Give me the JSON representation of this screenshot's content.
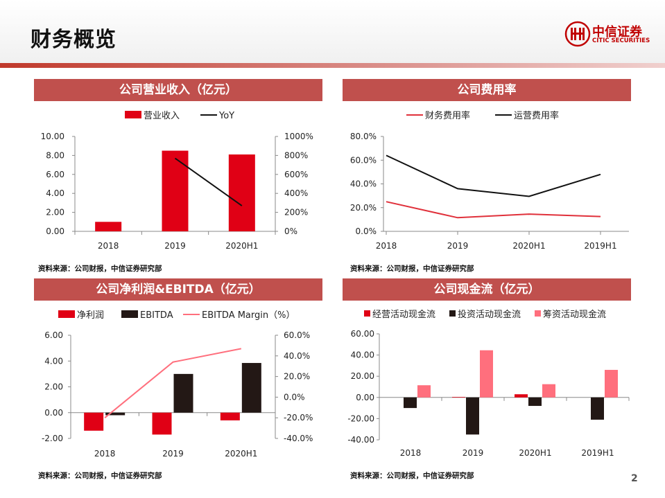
{
  "page": {
    "title": "财务概览",
    "page_number": "2"
  },
  "logo": {
    "name_cn": "中信证券",
    "name_en": "CITIC SECURITIES"
  },
  "colors": {
    "red": "#e00015",
    "black": "#231815",
    "pink": "#ff6f7d",
    "header_bar": "#c0504d",
    "line_red": "#e0303a"
  },
  "panels": [
    {
      "title": "公司营业收入（亿元）",
      "source": "资料来源：公司财报，中信证券研究部"
    },
    {
      "title": "公司费用率",
      "source": "资料来源：公司财报，中信证券研究部"
    },
    {
      "title": "公司净利润&EBITDA（亿元）",
      "source": "资料来源：公司财报，中信证券研究部"
    },
    {
      "title": "公司现金流（亿元）",
      "source": "资料来源：公司财报，中信证券研究部"
    }
  ],
  "chart_data": [
    {
      "type": "bar",
      "categories": [
        "2018",
        "2019",
        "2020H1"
      ],
      "series": [
        {
          "name": "营业收入",
          "kind": "bar",
          "axis": "left",
          "values": [
            1.0,
            8.5,
            8.1
          ]
        },
        {
          "name": "YoY",
          "kind": "line",
          "axis": "right",
          "values": [
            null,
            770,
            270
          ]
        }
      ],
      "ylim": [
        0,
        10
      ],
      "yticks": [
        "0.00",
        "2.00",
        "4.00",
        "6.00",
        "8.00",
        "10.00"
      ],
      "y2lim": [
        0,
        1000
      ],
      "y2ticks": [
        "0%",
        "200%",
        "400%",
        "600%",
        "800%",
        "1000%"
      ],
      "legend": "top"
    },
    {
      "type": "line",
      "categories": [
        "2018",
        "2019",
        "2020H1",
        "2019H1"
      ],
      "series": [
        {
          "name": "财务费用率",
          "values": [
            25.0,
            11.5,
            14.5,
            12.5
          ]
        },
        {
          "name": "运营费用率",
          "values": [
            64.0,
            36.0,
            29.5,
            48.0
          ]
        }
      ],
      "ylim": [
        0,
        80
      ],
      "yticks": [
        "0.0%",
        "20.0%",
        "40.0%",
        "60.0%",
        "80.0%"
      ],
      "legend": "top"
    },
    {
      "type": "bar",
      "categories": [
        "2018",
        "2019",
        "2020H1"
      ],
      "series": [
        {
          "name": "净利润",
          "kind": "bar",
          "axis": "left",
          "values": [
            -1.4,
            -1.7,
            -0.6
          ]
        },
        {
          "name": "EBITDA",
          "kind": "bar",
          "axis": "left",
          "values": [
            -0.2,
            3.0,
            3.85
          ]
        },
        {
          "name": "EBITDA Margin（%）",
          "kind": "line",
          "axis": "right",
          "values": [
            -20,
            34,
            47
          ]
        }
      ],
      "ylim": [
        -2,
        6
      ],
      "yticks": [
        "-2.00",
        "0.00",
        "2.00",
        "4.00",
        "6.00"
      ],
      "y2lim": [
        -40,
        60
      ],
      "y2ticks": [
        "-40.0%",
        "-20.0%",
        "0.0%",
        "20.0%",
        "40.0%",
        "60.0%"
      ],
      "legend": "top"
    },
    {
      "type": "bar",
      "categories": [
        "2018",
        "2019",
        "2020H1",
        "2019H1"
      ],
      "series": [
        {
          "name": "经营活动现金流",
          "values": [
            0.0,
            0.5,
            3.0,
            0.0
          ]
        },
        {
          "name": "投资活动现金流",
          "values": [
            -10.0,
            -35.0,
            -8.0,
            -21.0
          ]
        },
        {
          "name": "筹资活动现金流",
          "values": [
            11.5,
            44.5,
            12.5,
            26.0
          ]
        }
      ],
      "ylim": [
        -40,
        60
      ],
      "yticks": [
        "-40.00",
        "-20.00",
        "0.00",
        "20.00",
        "40.00",
        "60.00"
      ],
      "legend": "top"
    }
  ]
}
